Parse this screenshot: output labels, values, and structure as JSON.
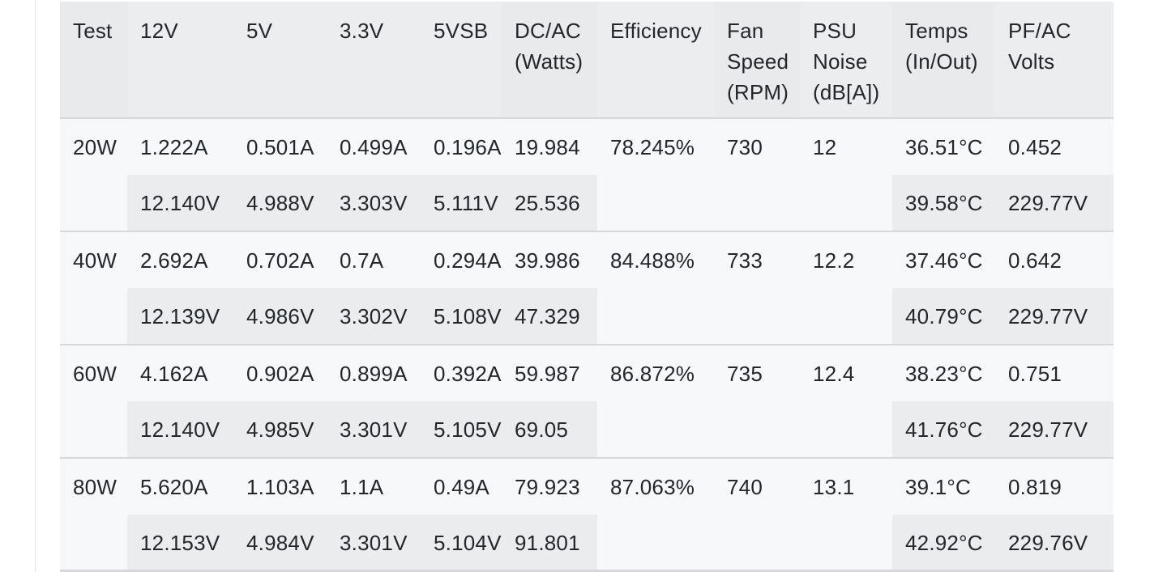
{
  "table": {
    "headers": [
      {
        "lines": [
          "Test"
        ]
      },
      {
        "lines": [
          "12V"
        ]
      },
      {
        "lines": [
          "5V"
        ]
      },
      {
        "lines": [
          "3.3V"
        ]
      },
      {
        "lines": [
          "5VSB"
        ]
      },
      {
        "lines": [
          "DC/AC",
          "(Watts)"
        ]
      },
      {
        "lines": [
          "Efficiency"
        ]
      },
      {
        "lines": [
          "Fan",
          "Speed",
          "(RPM)"
        ]
      },
      {
        "lines": [
          "PSU",
          "Noise",
          "(dB[A])"
        ]
      },
      {
        "lines": [
          "Temps",
          "(In/Out)"
        ]
      },
      {
        "lines": [
          "PF/AC",
          "Volts"
        ]
      }
    ],
    "rows": [
      {
        "test": "20W",
        "amps": [
          "1.222A",
          "0.501A",
          "0.499A",
          "0.196A"
        ],
        "volts": [
          "12.140V",
          "4.988V",
          "3.303V",
          "5.111V"
        ],
        "dc": "19.984",
        "ac": "25.536",
        "efficiency": "78.245%",
        "fan": "730",
        "noise": "12",
        "temp_in": "36.51°C",
        "temp_out": "39.58°C",
        "pf": "0.452",
        "ac_volts": "229.77V"
      },
      {
        "test": "40W",
        "amps": [
          "2.692A",
          "0.702A",
          "0.7A",
          "0.294A"
        ],
        "volts": [
          "12.139V",
          "4.986V",
          "3.302V",
          "5.108V"
        ],
        "dc": "39.986",
        "ac": "47.329",
        "efficiency": "84.488%",
        "fan": "733",
        "noise": "12.2",
        "temp_in": "37.46°C",
        "temp_out": "40.79°C",
        "pf": "0.642",
        "ac_volts": "229.77V"
      },
      {
        "test": "60W",
        "amps": [
          "4.162A",
          "0.902A",
          "0.899A",
          "0.392A"
        ],
        "volts": [
          "12.140V",
          "4.985V",
          "3.301V",
          "5.105V"
        ],
        "dc": "59.987",
        "ac": "69.05",
        "efficiency": "86.872%",
        "fan": "735",
        "noise": "12.4",
        "temp_in": "38.23°C",
        "temp_out": "41.76°C",
        "pf": "0.751",
        "ac_volts": "229.77V"
      },
      {
        "test": "80W",
        "amps": [
          "5.620A",
          "1.103A",
          "1.1A",
          "0.49A"
        ],
        "volts": [
          "12.153V",
          "4.984V",
          "3.301V",
          "5.104V"
        ],
        "dc": "79.923",
        "ac": "91.801",
        "efficiency": "87.063%",
        "fan": "740",
        "noise": "13.1",
        "temp_in": "39.1°C",
        "temp_out": "42.92°C",
        "pf": "0.819",
        "ac_volts": "229.76V"
      }
    ]
  }
}
